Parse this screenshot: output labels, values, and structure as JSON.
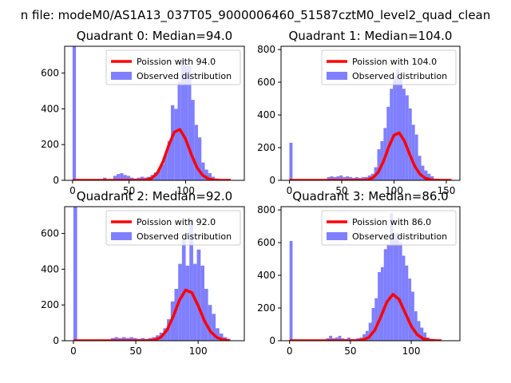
{
  "figure": {
    "suptitle": "n file: modeM0/AS1A13_037T05_9000006460_51587cztM0_level2_quad_clean"
  },
  "colors": {
    "histogram": "#7f7fff",
    "poisson_line": "#ff0000",
    "axis": "#000000"
  },
  "chart_data": [
    {
      "type": "bar",
      "title": "Quadrant 0: Median=94.0",
      "median": 94.0,
      "xlim": [
        -7,
        152
      ],
      "ylim": [
        0,
        750
      ],
      "xticks": [
        0,
        50,
        100
      ],
      "yticks": [
        0,
        200,
        400,
        600
      ],
      "legend_position": "top-right",
      "legend": [
        "Poission with 94.0",
        "Observed distribution"
      ],
      "series": [
        {
          "name": "Observed distribution",
          "kind": "histogram",
          "bins": [
            {
              "x0": 0,
              "x1": 3,
              "y": 750
            },
            {
              "x0": 27,
              "x1": 30,
              "y": 15
            },
            {
              "x0": 36,
              "x1": 39,
              "y": 25
            },
            {
              "x0": 39,
              "x1": 42,
              "y": 35
            },
            {
              "x0": 42,
              "x1": 45,
              "y": 40
            },
            {
              "x0": 45,
              "x1": 48,
              "y": 30
            },
            {
              "x0": 48,
              "x1": 51,
              "y": 25
            },
            {
              "x0": 51,
              "x1": 54,
              "y": 15
            },
            {
              "x0": 54,
              "x1": 57,
              "y": 10
            },
            {
              "x0": 57,
              "x1": 60,
              "y": 15
            },
            {
              "x0": 60,
              "x1": 63,
              "y": 20
            },
            {
              "x0": 63,
              "x1": 66,
              "y": 15
            },
            {
              "x0": 66,
              "x1": 69,
              "y": 20
            },
            {
              "x0": 69,
              "x1": 72,
              "y": 30
            },
            {
              "x0": 72,
              "x1": 75,
              "y": 45
            },
            {
              "x0": 75,
              "x1": 78,
              "y": 60
            },
            {
              "x0": 78,
              "x1": 81,
              "y": 90
            },
            {
              "x0": 81,
              "x1": 84,
              "y": 150
            },
            {
              "x0": 84,
              "x1": 87,
              "y": 220
            },
            {
              "x0": 87,
              "x1": 90,
              "y": 420
            },
            {
              "x0": 90,
              "x1": 93,
              "y": 400
            },
            {
              "x0": 93,
              "x1": 96,
              "y": 550
            },
            {
              "x0": 96,
              "x1": 99,
              "y": 680
            },
            {
              "x0": 99,
              "x1": 102,
              "y": 640
            },
            {
              "x0": 102,
              "x1": 105,
              "y": 640
            },
            {
              "x0": 105,
              "x1": 108,
              "y": 450
            },
            {
              "x0": 108,
              "x1": 111,
              "y": 310
            },
            {
              "x0": 111,
              "x1": 114,
              "y": 240
            },
            {
              "x0": 114,
              "x1": 117,
              "y": 100
            },
            {
              "x0": 117,
              "x1": 120,
              "y": 60
            },
            {
              "x0": 120,
              "x1": 123,
              "y": 40
            },
            {
              "x0": 123,
              "x1": 126,
              "y": 20
            },
            {
              "x0": 126,
              "x1": 129,
              "y": 10
            }
          ]
        },
        {
          "name": "Poission with 94.0",
          "kind": "poisson",
          "mean": 94.0,
          "scale": 7000,
          "x_range": [
            0,
            140
          ]
        }
      ]
    },
    {
      "type": "bar",
      "title": "Quadrant 1: Median=104.0",
      "median": 104.0,
      "xlim": [
        -8,
        163
      ],
      "ylim": [
        0,
        820
      ],
      "xticks": [
        0,
        50,
        100,
        150
      ],
      "yticks": [
        0,
        200,
        400,
        600,
        800
      ],
      "legend_position": "top-right",
      "legend": [
        "Poission with 104.0",
        "Observed distribution"
      ],
      "series": [
        {
          "name": "Observed distribution",
          "kind": "histogram",
          "bins": [
            {
              "x0": 0,
              "x1": 3,
              "y": 230
            },
            {
              "x0": 36,
              "x1": 39,
              "y": 20
            },
            {
              "x0": 39,
              "x1": 42,
              "y": 25
            },
            {
              "x0": 42,
              "x1": 45,
              "y": 20
            },
            {
              "x0": 45,
              "x1": 48,
              "y": 25
            },
            {
              "x0": 48,
              "x1": 51,
              "y": 30
            },
            {
              "x0": 51,
              "x1": 54,
              "y": 20
            },
            {
              "x0": 54,
              "x1": 57,
              "y": 25
            },
            {
              "x0": 57,
              "x1": 60,
              "y": 20
            },
            {
              "x0": 60,
              "x1": 63,
              "y": 15
            },
            {
              "x0": 63,
              "x1": 66,
              "y": 20
            },
            {
              "x0": 66,
              "x1": 69,
              "y": 15
            },
            {
              "x0": 69,
              "x1": 72,
              "y": 20
            },
            {
              "x0": 72,
              "x1": 75,
              "y": 20
            },
            {
              "x0": 75,
              "x1": 78,
              "y": 30
            },
            {
              "x0": 78,
              "x1": 81,
              "y": 40
            },
            {
              "x0": 81,
              "x1": 84,
              "y": 80
            },
            {
              "x0": 84,
              "x1": 87,
              "y": 190
            },
            {
              "x0": 87,
              "x1": 90,
              "y": 240
            },
            {
              "x0": 90,
              "x1": 93,
              "y": 320
            },
            {
              "x0": 93,
              "x1": 96,
              "y": 450
            },
            {
              "x0": 96,
              "x1": 99,
              "y": 560
            },
            {
              "x0": 99,
              "x1": 102,
              "y": 640
            },
            {
              "x0": 102,
              "x1": 105,
              "y": 680
            },
            {
              "x0": 105,
              "x1": 108,
              "y": 620
            },
            {
              "x0": 108,
              "x1": 111,
              "y": 560
            },
            {
              "x0": 111,
              "x1": 114,
              "y": 520
            },
            {
              "x0": 114,
              "x1": 117,
              "y": 440
            },
            {
              "x0": 117,
              "x1": 120,
              "y": 340
            },
            {
              "x0": 120,
              "x1": 123,
              "y": 280
            },
            {
              "x0": 123,
              "x1": 126,
              "y": 150
            },
            {
              "x0": 126,
              "x1": 129,
              "y": 90
            },
            {
              "x0": 129,
              "x1": 132,
              "y": 60
            },
            {
              "x0": 132,
              "x1": 135,
              "y": 40
            },
            {
              "x0": 135,
              "x1": 138,
              "y": 25
            },
            {
              "x0": 138,
              "x1": 141,
              "y": 10
            }
          ]
        },
        {
          "name": "Poission with 104.0",
          "kind": "poisson",
          "mean": 104.0,
          "scale": 7500,
          "x_range": [
            0,
            155
          ]
        }
      ]
    },
    {
      "type": "bar",
      "title": "Quadrant 2: Median=92.0",
      "median": 92.0,
      "xlim": [
        -7,
        137
      ],
      "ylim": [
        0,
        750
      ],
      "xticks": [
        0,
        50,
        100
      ],
      "yticks": [
        0,
        200,
        400,
        600
      ],
      "legend_position": "top-right",
      "legend": [
        "Poission with 92.0",
        "Observed distribution"
      ],
      "series": [
        {
          "name": "Observed distribution",
          "kind": "histogram",
          "bins": [
            {
              "x0": 0,
              "x1": 3,
              "y": 750
            },
            {
              "x0": 30,
              "x1": 33,
              "y": 15
            },
            {
              "x0": 33,
              "x1": 36,
              "y": 20
            },
            {
              "x0": 36,
              "x1": 39,
              "y": 15
            },
            {
              "x0": 39,
              "x1": 42,
              "y": 20
            },
            {
              "x0": 42,
              "x1": 45,
              "y": 15
            },
            {
              "x0": 45,
              "x1": 48,
              "y": 20
            },
            {
              "x0": 48,
              "x1": 51,
              "y": 15
            },
            {
              "x0": 51,
              "x1": 54,
              "y": 10
            },
            {
              "x0": 54,
              "x1": 57,
              "y": 15
            },
            {
              "x0": 57,
              "x1": 60,
              "y": 10
            },
            {
              "x0": 60,
              "x1": 63,
              "y": 15
            },
            {
              "x0": 63,
              "x1": 66,
              "y": 20
            },
            {
              "x0": 66,
              "x1": 69,
              "y": 30
            },
            {
              "x0": 69,
              "x1": 72,
              "y": 45
            },
            {
              "x0": 72,
              "x1": 75,
              "y": 70
            },
            {
              "x0": 75,
              "x1": 78,
              "y": 120
            },
            {
              "x0": 78,
              "x1": 81,
              "y": 220
            },
            {
              "x0": 81,
              "x1": 84,
              "y": 290
            },
            {
              "x0": 84,
              "x1": 87,
              "y": 430
            },
            {
              "x0": 87,
              "x1": 90,
              "y": 570
            },
            {
              "x0": 90,
              "x1": 93,
              "y": 420
            },
            {
              "x0": 93,
              "x1": 96,
              "y": 680
            },
            {
              "x0": 96,
              "x1": 99,
              "y": 430
            },
            {
              "x0": 99,
              "x1": 102,
              "y": 510
            },
            {
              "x0": 102,
              "x1": 105,
              "y": 420
            },
            {
              "x0": 105,
              "x1": 108,
              "y": 290
            },
            {
              "x0": 108,
              "x1": 111,
              "y": 200
            },
            {
              "x0": 111,
              "x1": 114,
              "y": 150
            },
            {
              "x0": 114,
              "x1": 117,
              "y": 70
            },
            {
              "x0": 117,
              "x1": 120,
              "y": 40
            },
            {
              "x0": 120,
              "x1": 123,
              "y": 20
            },
            {
              "x0": 123,
              "x1": 126,
              "y": 10
            }
          ]
        },
        {
          "name": "Poission with 92.0",
          "kind": "poisson",
          "mean": 92.0,
          "scale": 6900,
          "x_range": [
            0,
            125
          ]
        }
      ]
    },
    {
      "type": "bar",
      "title": "Quadrant 3: Median=86.0",
      "median": 86.0,
      "xlim": [
        -7,
        140
      ],
      "ylim": [
        0,
        820
      ],
      "xticks": [
        0,
        50,
        100
      ],
      "yticks": [
        0,
        200,
        400,
        600,
        800
      ],
      "legend_position": "top-right",
      "legend": [
        "Poission with 86.0",
        "Observed distribution"
      ],
      "series": [
        {
          "name": "Observed distribution",
          "kind": "histogram",
          "bins": [
            {
              "x0": 0,
              "x1": 2.5,
              "y": 610
            },
            {
              "x0": 30,
              "x1": 32.5,
              "y": 15
            },
            {
              "x0": 32.5,
              "x1": 35,
              "y": 30
            },
            {
              "x0": 35,
              "x1": 37.5,
              "y": 15
            },
            {
              "x0": 37.5,
              "x1": 40,
              "y": 20
            },
            {
              "x0": 40,
              "x1": 42.5,
              "y": 30
            },
            {
              "x0": 42.5,
              "x1": 45,
              "y": 15
            },
            {
              "x0": 45,
              "x1": 47.5,
              "y": 10
            },
            {
              "x0": 47.5,
              "x1": 50,
              "y": 20
            },
            {
              "x0": 50,
              "x1": 52.5,
              "y": 10
            },
            {
              "x0": 52.5,
              "x1": 55,
              "y": 10
            },
            {
              "x0": 55,
              "x1": 57.5,
              "y": 15
            },
            {
              "x0": 57.5,
              "x1": 60,
              "y": 20
            },
            {
              "x0": 60,
              "x1": 62.5,
              "y": 40
            },
            {
              "x0": 62.5,
              "x1": 65,
              "y": 60
            },
            {
              "x0": 65,
              "x1": 67.5,
              "y": 110
            },
            {
              "x0": 67.5,
              "x1": 70,
              "y": 200
            },
            {
              "x0": 70,
              "x1": 72.5,
              "y": 260
            },
            {
              "x0": 72.5,
              "x1": 75,
              "y": 420
            },
            {
              "x0": 75,
              "x1": 77.5,
              "y": 450
            },
            {
              "x0": 77.5,
              "x1": 80,
              "y": 560
            },
            {
              "x0": 80,
              "x1": 82.5,
              "y": 590
            },
            {
              "x0": 82.5,
              "x1": 85,
              "y": 780
            },
            {
              "x0": 85,
              "x1": 87.5,
              "y": 650
            },
            {
              "x0": 87.5,
              "x1": 90,
              "y": 660
            },
            {
              "x0": 90,
              "x1": 92.5,
              "y": 600
            },
            {
              "x0": 92.5,
              "x1": 95,
              "y": 520
            },
            {
              "x0": 95,
              "x1": 97.5,
              "y": 460
            },
            {
              "x0": 97.5,
              "x1": 100,
              "y": 380
            },
            {
              "x0": 100,
              "x1": 102.5,
              "y": 300
            },
            {
              "x0": 102.5,
              "x1": 105,
              "y": 180
            },
            {
              "x0": 105,
              "x1": 107.5,
              "y": 120
            },
            {
              "x0": 107.5,
              "x1": 110,
              "y": 80
            },
            {
              "x0": 110,
              "x1": 112.5,
              "y": 50
            },
            {
              "x0": 112.5,
              "x1": 115,
              "y": 20
            },
            {
              "x0": 115,
              "x1": 117.5,
              "y": 10
            }
          ]
        },
        {
          "name": "Poission with 86.0",
          "kind": "poisson",
          "mean": 86.0,
          "scale": 6600,
          "x_range": [
            0,
            125
          ]
        }
      ]
    }
  ]
}
